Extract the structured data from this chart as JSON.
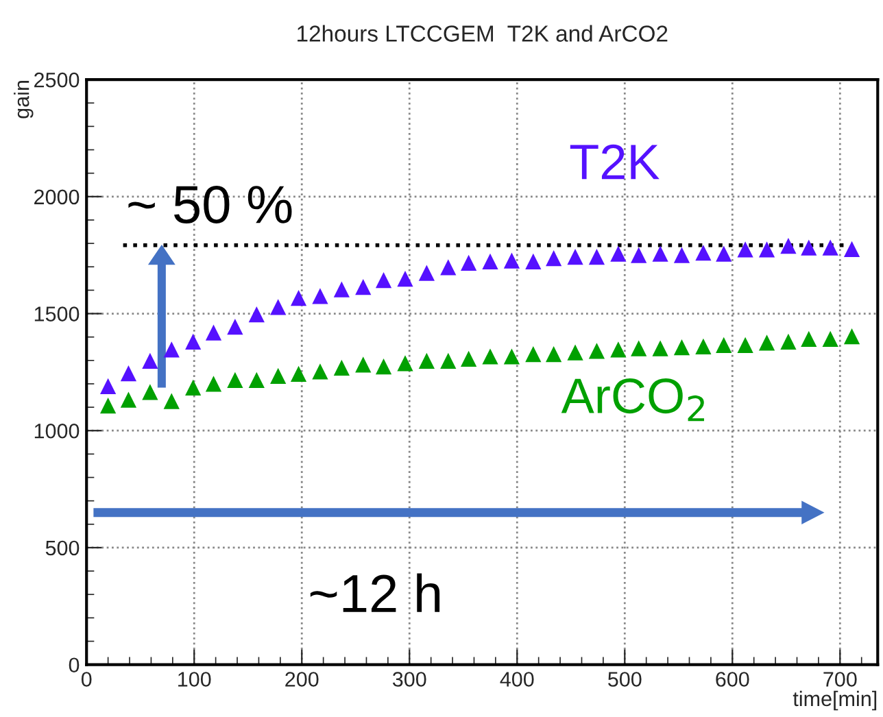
{
  "chart_data": {
    "type": "scatter",
    "title": "12hours LTCCGEM  T2K and ArCO2",
    "xlabel": "time[min]",
    "ylabel": "gain",
    "x": [
      20,
      39,
      59,
      79,
      99,
      118,
      138,
      158,
      178,
      197,
      217,
      237,
      257,
      276,
      296,
      316,
      336,
      355,
      375,
      395,
      415,
      434,
      454,
      474,
      494,
      513,
      533,
      553,
      573,
      592,
      612,
      632,
      652,
      671,
      691,
      711
    ],
    "series": [
      {
        "name": "T2K",
        "color": "#5511ff",
        "values": [
          1190,
          1245,
          1298,
          1347,
          1380,
          1419,
          1444,
          1497,
          1528,
          1567,
          1575,
          1604,
          1614,
          1643,
          1649,
          1674,
          1698,
          1717,
          1723,
          1727,
          1723,
          1737,
          1743,
          1743,
          1756,
          1750,
          1756,
          1750,
          1760,
          1756,
          1774,
          1774,
          1790,
          1782,
          1782,
          1776
        ]
      },
      {
        "name": "ArCO$_{2}$",
        "color": "#00a000",
        "values": [
          1107,
          1132,
          1165,
          1126,
          1184,
          1200,
          1216,
          1216,
          1234,
          1243,
          1253,
          1269,
          1282,
          1274,
          1288,
          1298,
          1298,
          1307,
          1317,
          1317,
          1327,
          1327,
          1334,
          1341,
          1347,
          1352,
          1352,
          1356,
          1360,
          1366,
          1366,
          1376,
          1380,
          1392,
          1392,
          1403
        ]
      },
      {
        "type": "line",
        "x": [
          34,
          708
        ],
        "values": [
          1792,
          1792
        ],
        "color": "#000000",
        "line_style": "dotted",
        "marker": "none"
      }
    ],
    "annotations": [
      "~ 50 %",
      "~12 h"
    ],
    "xlim": [
      0,
      735
    ],
    "ylim": [
      0,
      2500
    ],
    "xticks": [
      0,
      100,
      200,
      300,
      400,
      500,
      600,
      700
    ],
    "yticks": [
      0,
      500,
      1000,
      1500,
      2000,
      2500
    ],
    "grid": true,
    "marker": "triangle",
    "legend": false
  }
}
